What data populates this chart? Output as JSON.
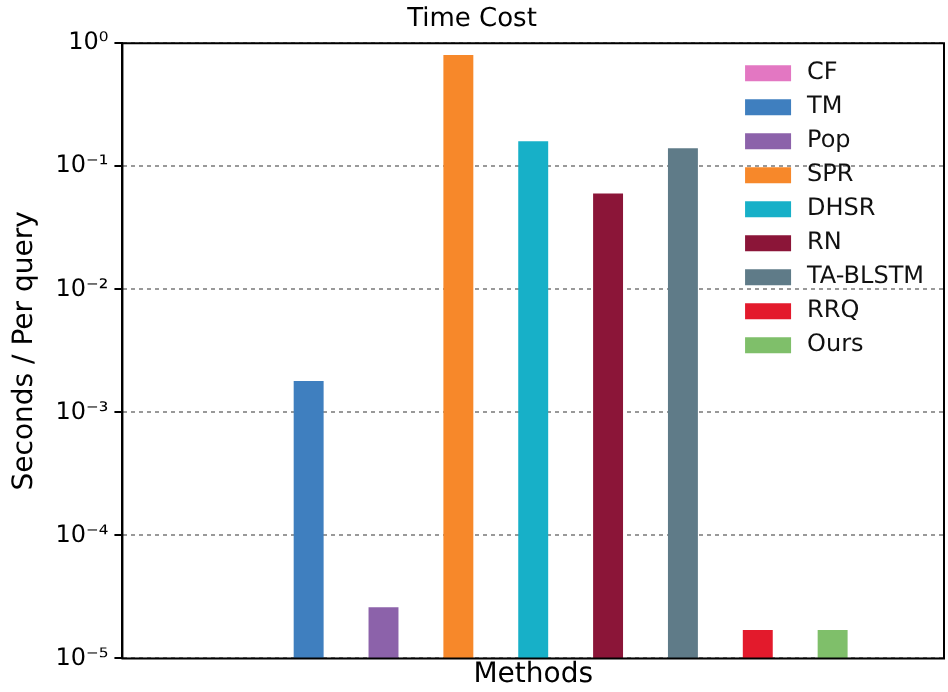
{
  "chart_data": {
    "type": "bar",
    "title": "Time Cost",
    "xlabel": "Methods",
    "ylabel": "Seconds / Per query",
    "categories": [
      null
    ],
    "series": [
      {
        "name": "CF",
        "color": "#e377c2",
        "values": [
          null
        ]
      },
      {
        "name": "TM",
        "color": "#3f7fbf",
        "values": [
          0.0018
        ]
      },
      {
        "name": "Pop",
        "color": "#8c62aa",
        "values": [
          2.6e-05
        ]
      },
      {
        "name": "SPR",
        "color": "#f7882a",
        "values": [
          0.8
        ]
      },
      {
        "name": "DHSR",
        "color": "#17b0c8",
        "values": [
          0.16
        ]
      },
      {
        "name": "RN",
        "color": "#8b1538",
        "values": [
          0.06
        ]
      },
      {
        "name": "TA-BLSTM",
        "color": "#5f7b88",
        "values": [
          0.14
        ]
      },
      {
        "name": "RRQ",
        "color": "#e31a2c",
        "values": [
          1.7e-05
        ]
      },
      {
        "name": "Ours",
        "color": "#7fbf6a",
        "values": [
          1.7e-05
        ]
      }
    ],
    "log": "y",
    "ylim": [
      1e-05,
      1
    ],
    "yticks": [
      {
        "value": 1e-05,
        "label": "10⁻⁵"
      },
      {
        "value": 0.0001,
        "label": "10⁻⁴"
      },
      {
        "value": 0.001,
        "label": "10⁻³"
      },
      {
        "value": 0.01,
        "label": "10⁻²"
      },
      {
        "value": 0.1,
        "label": "10⁻¹"
      },
      {
        "value": 1,
        "label": "10⁰"
      }
    ],
    "grid": "y",
    "legend": "top right"
  }
}
